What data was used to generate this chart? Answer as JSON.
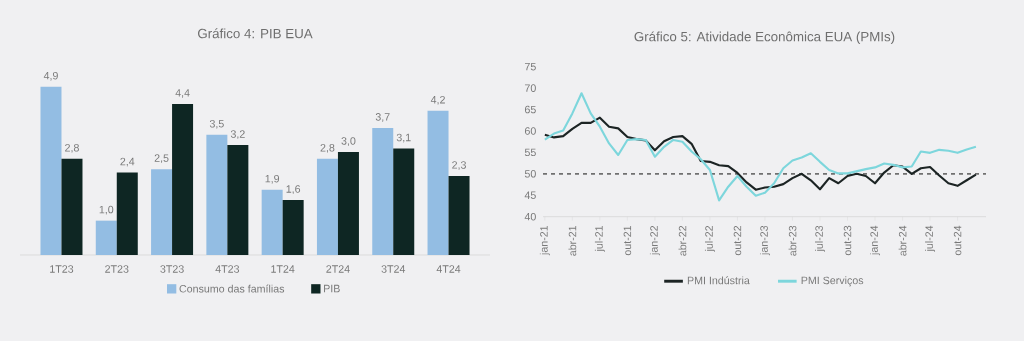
{
  "chart_data": [
    {
      "type": "bar",
      "title": "Gráfico 4: PIB EUA",
      "categories": [
        "1T23",
        "2T23",
        "3T23",
        "4T23",
        "1T24",
        "2T24",
        "3T24",
        "4T24"
      ],
      "series": [
        {
          "name": "Consumo das famílias",
          "color": "#93bde3",
          "values": [
            4.9,
            1.0,
            2.5,
            3.5,
            1.9,
            2.8,
            3.7,
            4.2
          ],
          "value_labels": [
            "4,9",
            "1,0",
            "2,5",
            "3,5",
            "1,9",
            "2,8",
            "3,7",
            "4,2"
          ]
        },
        {
          "name": "PIB",
          "color": "#0e2623",
          "values": [
            2.8,
            2.4,
            4.4,
            3.2,
            1.6,
            3.0,
            3.1,
            2.3
          ],
          "value_labels": [
            "2,8",
            "2,4",
            "4,4",
            "3,2",
            "1,6",
            "3,0",
            "3,1",
            "2,3"
          ]
        }
      ],
      "legend": "bottom"
    },
    {
      "type": "line",
      "title": "Gráfico 5: Atividade Econômica EUA (PMIs)",
      "categories": [
        "jan-21",
        null,
        null,
        "abr-21",
        null,
        null,
        "jul-21",
        null,
        null,
        "out-21",
        null,
        null,
        "jan-22",
        null,
        null,
        "abr-22",
        null,
        null,
        "jul-22",
        null,
        null,
        "out-22",
        null,
        null,
        "jan-23",
        null,
        null,
        "abr-23",
        null,
        null,
        "jul-23",
        null,
        null,
        "out-23",
        null,
        null,
        "jan-24",
        null,
        null,
        "abr-24",
        null,
        null,
        "jul-24",
        null,
        null,
        "out-24",
        null,
        null
      ],
      "series": [
        {
          "name": "PMI Indústria",
          "color": "#1c2424",
          "values": [
            59.1,
            58.5,
            58.8,
            60.5,
            61.9,
            61.9,
            63.1,
            61.0,
            60.6,
            58.6,
            58.1,
            57.8,
            55.5,
            57.6,
            58.6,
            58.8,
            57.0,
            53.0,
            52.8,
            52.0,
            51.8,
            50.2,
            48.0,
            46.3,
            46.8,
            47.0,
            47.6,
            49.0,
            50.0,
            48.5,
            46.4,
            49.0,
            47.8,
            49.5,
            50.0,
            49.5,
            47.8,
            50.3,
            52.0,
            51.7,
            50.0,
            51.3,
            51.6,
            49.6,
            47.8,
            47.2,
            48.5,
            49.8
          ]
        },
        {
          "name": "PMI Serviços",
          "color": "#7dd6dc",
          "values": [
            58.0,
            59.4,
            60.1,
            64.1,
            68.8,
            64.1,
            61.0,
            57.1,
            54.4,
            57.9,
            58.1,
            57.9,
            54.0,
            56.3,
            57.9,
            57.5,
            55.2,
            53.4,
            50.9,
            43.8,
            47.0,
            49.5,
            47.0,
            44.9,
            45.6,
            47.8,
            51.3,
            53.1,
            53.8,
            54.8,
            52.8,
            50.9,
            50.1,
            50.1,
            50.6,
            51.1,
            51.5,
            52.4,
            52.1,
            51.5,
            51.7,
            55.2,
            54.9,
            55.6,
            55.4,
            54.9,
            55.7,
            56.3
          ]
        }
      ],
      "ylim": [
        40,
        75
      ],
      "yticks": [
        40,
        45,
        50,
        55,
        60,
        65,
        70,
        75
      ],
      "ref_lines": [
        {
          "axis": "y",
          "value": 50,
          "line_style": "dashed",
          "color": "#707070"
        }
      ],
      "legend": "bottom"
    }
  ]
}
